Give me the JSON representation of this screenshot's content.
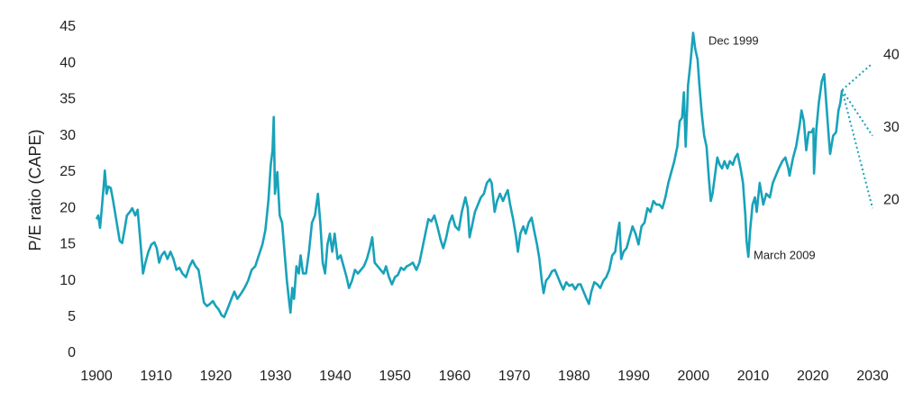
{
  "chart_data": {
    "type": "line",
    "y_label": "P/E ratio (CAPE)",
    "annotations": [
      "Dec 1999",
      "March 2009"
    ],
    "xlim": [
      1900,
      2030
    ],
    "xticks": [
      1900,
      1910,
      1920,
      1930,
      1940,
      1950,
      1960,
      1970,
      1980,
      1990,
      2000,
      2010,
      2020,
      2030
    ],
    "ylim": [
      0,
      45
    ],
    "yticks": [
      0,
      5,
      10,
      15,
      20,
      25,
      30,
      35,
      40,
      45
    ],
    "grid": false,
    "series": [
      {
        "color": "#18a2ba",
        "line_style": "solid",
        "x": [
          1900.0,
          1900.3,
          1900.6,
          1900.9,
          1901.3,
          1901.4,
          1901.7,
          1902.0,
          1902.4,
          1902.8,
          1903.2,
          1903.6,
          1903.9,
          1904.3,
          1904.7,
          1905.1,
          1905.6,
          1906.0,
          1906.5,
          1906.9,
          1907.3,
          1907.8,
          1908.2,
          1908.7,
          1909.2,
          1909.7,
          1910.1,
          1910.5,
          1910.9,
          1911.4,
          1911.9,
          1912.4,
          1912.9,
          1913.4,
          1913.9,
          1914.4,
          1915.0,
          1915.6,
          1916.1,
          1916.6,
          1917.1,
          1917.6,
          1918.0,
          1918.5,
          1919.0,
          1919.5,
          1920.0,
          1920.5,
          1921.0,
          1921.4,
          1922.0,
          1922.6,
          1923.1,
          1923.6,
          1924.2,
          1924.8,
          1925.4,
          1926.0,
          1926.6,
          1927.2,
          1927.8,
          1928.3,
          1928.8,
          1929.2,
          1929.5,
          1929.7,
          1929.9,
          1930.3,
          1930.7,
          1931.1,
          1931.5,
          1931.9,
          1932.3,
          1932.5,
          1932.8,
          1933.1,
          1933.5,
          1933.9,
          1934.2,
          1934.6,
          1935.1,
          1935.6,
          1936.1,
          1936.6,
          1937.1,
          1937.5,
          1937.9,
          1938.3,
          1938.7,
          1939.1,
          1939.5,
          1939.9,
          1940.4,
          1940.9,
          1941.4,
          1941.9,
          1942.3,
          1942.8,
          1943.3,
          1943.8,
          1944.3,
          1944.8,
          1945.3,
          1945.8,
          1946.2,
          1946.6,
          1947.1,
          1947.6,
          1948.1,
          1948.5,
          1949.0,
          1949.5,
          1950.0,
          1950.5,
          1951.0,
          1951.5,
          1952.0,
          1952.5,
          1953.0,
          1953.6,
          1954.1,
          1954.6,
          1955.1,
          1955.6,
          1956.1,
          1956.6,
          1957.1,
          1957.7,
          1958.1,
          1958.6,
          1959.1,
          1959.6,
          1960.1,
          1960.7,
          1961.2,
          1961.8,
          1962.2,
          1962.5,
          1962.9,
          1963.4,
          1963.9,
          1964.4,
          1964.9,
          1965.4,
          1965.9,
          1966.2,
          1966.7,
          1967.1,
          1967.6,
          1968.1,
          1968.6,
          1968.9,
          1969.3,
          1969.8,
          1970.3,
          1970.6,
          1971.0,
          1971.5,
          1971.9,
          1972.4,
          1972.9,
          1973.3,
          1973.8,
          1974.2,
          1974.6,
          1974.9,
          1975.3,
          1975.8,
          1976.3,
          1976.8,
          1977.3,
          1977.8,
          1978.2,
          1978.7,
          1979.2,
          1979.7,
          1980.2,
          1980.7,
          1981.1,
          1981.6,
          1982.1,
          1982.5,
          1982.9,
          1983.4,
          1983.9,
          1984.4,
          1984.9,
          1985.4,
          1985.9,
          1986.4,
          1986.9,
          1987.3,
          1987.6,
          1987.9,
          1988.3,
          1988.8,
          1989.3,
          1989.8,
          1990.3,
          1990.8,
          1991.3,
          1991.8,
          1992.3,
          1992.8,
          1993.3,
          1993.8,
          1994.3,
          1994.8,
          1995.3,
          1995.8,
          1996.3,
          1996.8,
          1997.3,
          1997.7,
          1998.1,
          1998.4,
          1998.7,
          1999.1,
          1999.5,
          1999.95,
          2000.3,
          2000.7,
          2001.0,
          2001.4,
          2001.8,
          2002.2,
          2002.6,
          2002.9,
          2003.2,
          2003.6,
          2004.0,
          2004.4,
          2004.8,
          2005.2,
          2005.7,
          2006.1,
          2006.6,
          2007.0,
          2007.4,
          2007.9,
          2008.3,
          2008.7,
          2008.9,
          2009.2,
          2009.5,
          2009.9,
          2010.3,
          2010.6,
          2011.1,
          2011.7,
          2012.2,
          2012.8,
          2013.3,
          2013.8,
          2014.3,
          2014.9,
          2015.4,
          2015.9,
          2016.1,
          2016.7,
          2017.2,
          2017.8,
          2018.1,
          2018.5,
          2018.9,
          2019.3,
          2019.8,
          2020.1,
          2020.2,
          2020.6,
          2021.0,
          2021.5,
          2021.9,
          2022.3,
          2022.7,
          2022.9,
          2023.4,
          2023.9,
          2024.3,
          2024.6,
          2024.9
        ],
        "values": [
          18.5,
          19,
          17.3,
          20,
          24,
          25.2,
          22,
          23,
          22.8,
          21,
          19,
          17,
          15.5,
          15.2,
          17,
          19,
          19.5,
          20,
          19,
          19.8,
          16,
          11,
          12.5,
          14,
          15,
          15.3,
          14.5,
          12.5,
          13.5,
          14,
          13,
          14,
          13,
          11.5,
          11.8,
          11,
          10.5,
          12,
          12.8,
          12,
          11.5,
          9,
          7,
          6.5,
          6.8,
          7.2,
          6.5,
          6,
          5.2,
          5,
          6.2,
          7.5,
          8.5,
          7.5,
          8.2,
          9,
          10,
          11.5,
          12,
          13.5,
          15,
          17,
          21,
          26,
          28,
          32.6,
          22,
          25,
          19,
          18,
          14,
          10,
          7,
          5.6,
          9,
          7.5,
          12,
          11,
          13.5,
          11,
          11,
          14,
          18,
          19,
          22,
          18,
          12.5,
          11,
          15,
          16.5,
          14,
          16.5,
          13,
          13.5,
          12,
          10.5,
          9,
          10,
          11.5,
          11,
          11.5,
          12,
          13,
          14.5,
          16,
          12.5,
          12,
          11.5,
          11,
          12,
          10.5,
          9.5,
          10.5,
          10.8,
          11.8,
          11.5,
          12,
          12.2,
          12.5,
          11.5,
          12.5,
          14.5,
          16.5,
          18.5,
          18.2,
          19,
          17.5,
          15.5,
          14.5,
          16,
          18,
          19,
          17.5,
          17,
          19.5,
          21.5,
          20,
          16,
          17.5,
          19.5,
          20.5,
          21.5,
          22,
          23.5,
          24,
          23.5,
          19.5,
          21,
          22,
          21,
          22,
          22.5,
          20.5,
          18.5,
          16,
          14,
          16.5,
          17.5,
          16.5,
          18,
          18.7,
          17,
          15,
          13,
          10,
          8.3,
          10,
          10.5,
          11.3,
          11.5,
          10.5,
          9.5,
          8.8,
          9.8,
          9.3,
          9.5,
          8.8,
          9.5,
          9.5,
          8.5,
          7.5,
          6.8,
          8.5,
          9.8,
          9.5,
          9,
          10,
          10.5,
          11.5,
          13.5,
          14,
          16.5,
          18,
          13,
          14,
          14.5,
          16,
          17.5,
          16.5,
          15,
          17.5,
          18,
          20,
          19.5,
          21,
          20.5,
          20.5,
          20,
          21.5,
          23.5,
          25,
          26.5,
          28.5,
          32,
          32.5,
          36,
          28.5,
          37,
          40,
          44.2,
          42,
          40.5,
          37,
          33,
          30,
          28.5,
          24,
          21,
          22,
          24.5,
          27,
          26,
          25.5,
          26.5,
          25.5,
          26.5,
          26,
          27,
          27.5,
          25.5,
          23.5,
          19,
          15.5,
          13.3,
          17,
          20.5,
          21.5,
          19.5,
          23.5,
          20.5,
          22,
          21.5,
          23.5,
          24.5,
          25.5,
          26.5,
          27,
          25.5,
          24.5,
          27,
          28.5,
          31.5,
          33.5,
          32,
          28,
          30.5,
          30.5,
          31,
          24.8,
          31,
          34.5,
          37.5,
          38.5,
          34,
          29.5,
          27.5,
          30,
          30.5,
          33.5,
          34.5,
          36.3
        ]
      },
      {
        "color": "#18a2ba",
        "line_style": "dotted",
        "x": [
          2024.9,
          2030
        ],
        "values": [
          36.3,
          40
        ]
      },
      {
        "color": "#18a2ba",
        "line_style": "dotted",
        "x": [
          2024.9,
          2030
        ],
        "values": [
          36.3,
          30
        ]
      },
      {
        "color": "#18a2ba",
        "line_style": "dotted",
        "x": [
          2024.9,
          2030
        ],
        "values": [
          36.3,
          20
        ]
      }
    ]
  }
}
